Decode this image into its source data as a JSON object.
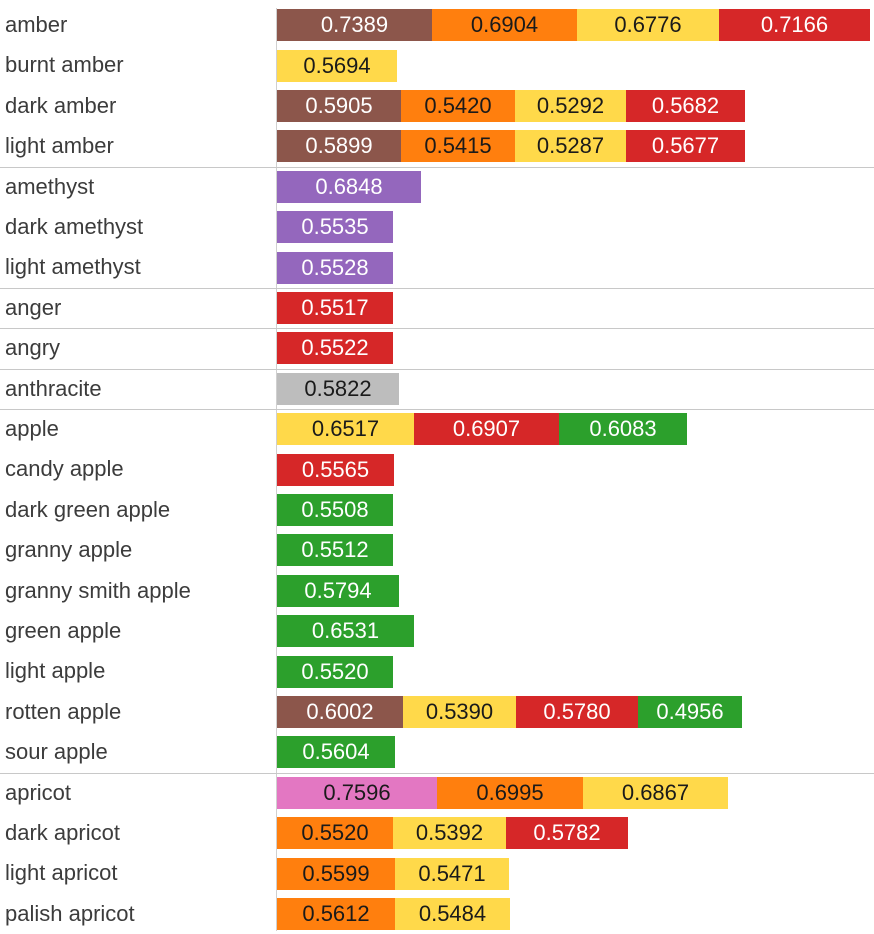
{
  "chart_data": {
    "type": "bar",
    "stacked": true,
    "orientation": "horizontal",
    "grid": false,
    "colors": {
      "brown": "#8c564b",
      "orange": "#ff7f0e",
      "yellow": "#ffd94a",
      "red": "#d62728",
      "purple": "#9467bd",
      "gray": "#bdbdbd",
      "green": "#2ca02c",
      "pink": "#e377c2"
    },
    "groups": [
      {
        "rows": [
          {
            "label": "amber",
            "segments": [
              {
                "value": 0.7389,
                "text": "0.7389",
                "color": "brown"
              },
              {
                "value": 0.6904,
                "text": "0.6904",
                "color": "orange"
              },
              {
                "value": 0.6776,
                "text": "0.6776",
                "color": "yellow"
              },
              {
                "value": 0.7166,
                "text": "0.7166",
                "color": "red"
              }
            ]
          },
          {
            "label": "burnt amber",
            "segments": [
              {
                "value": 0.5694,
                "text": "0.5694",
                "color": "yellow"
              }
            ]
          },
          {
            "label": "dark amber",
            "segments": [
              {
                "value": 0.5905,
                "text": "0.5905",
                "color": "brown"
              },
              {
                "value": 0.542,
                "text": "0.5420",
                "color": "orange"
              },
              {
                "value": 0.5292,
                "text": "0.5292",
                "color": "yellow"
              },
              {
                "value": 0.5682,
                "text": "0.5682",
                "color": "red"
              }
            ]
          },
          {
            "label": "light amber",
            "segments": [
              {
                "value": 0.5899,
                "text": "0.5899",
                "color": "brown"
              },
              {
                "value": 0.5415,
                "text": "0.5415",
                "color": "orange"
              },
              {
                "value": 0.5287,
                "text": "0.5287",
                "color": "yellow"
              },
              {
                "value": 0.5677,
                "text": "0.5677",
                "color": "red"
              }
            ]
          }
        ]
      },
      {
        "rows": [
          {
            "label": "amethyst",
            "segments": [
              {
                "value": 0.6848,
                "text": "0.6848",
                "color": "purple"
              }
            ]
          },
          {
            "label": "dark amethyst",
            "segments": [
              {
                "value": 0.5535,
                "text": "0.5535",
                "color": "purple"
              }
            ]
          },
          {
            "label": "light amethyst",
            "segments": [
              {
                "value": 0.5528,
                "text": "0.5528",
                "color": "purple"
              }
            ]
          }
        ]
      },
      {
        "rows": [
          {
            "label": "anger",
            "segments": [
              {
                "value": 0.5517,
                "text": "0.5517",
                "color": "red"
              }
            ]
          }
        ]
      },
      {
        "rows": [
          {
            "label": "angry",
            "segments": [
              {
                "value": 0.5522,
                "text": "0.5522",
                "color": "red"
              }
            ]
          }
        ]
      },
      {
        "rows": [
          {
            "label": "anthracite",
            "segments": [
              {
                "value": 0.5822,
                "text": "0.5822",
                "color": "gray"
              }
            ]
          }
        ]
      },
      {
        "rows": [
          {
            "label": "apple",
            "segments": [
              {
                "value": 0.6517,
                "text": "0.6517",
                "color": "yellow"
              },
              {
                "value": 0.6907,
                "text": "0.6907",
                "color": "red"
              },
              {
                "value": 0.6083,
                "text": "0.6083",
                "color": "green"
              }
            ]
          },
          {
            "label": "candy apple",
            "segments": [
              {
                "value": 0.5565,
                "text": "0.5565",
                "color": "red"
              }
            ]
          },
          {
            "label": "dark green apple",
            "segments": [
              {
                "value": 0.5508,
                "text": "0.5508",
                "color": "green"
              }
            ]
          },
          {
            "label": "granny apple",
            "segments": [
              {
                "value": 0.5512,
                "text": "0.5512",
                "color": "green"
              }
            ]
          },
          {
            "label": "granny smith apple",
            "segments": [
              {
                "value": 0.5794,
                "text": "0.5794",
                "color": "green"
              }
            ]
          },
          {
            "label": "green apple",
            "segments": [
              {
                "value": 0.6531,
                "text": "0.6531",
                "color": "green"
              }
            ]
          },
          {
            "label": "light apple",
            "segments": [
              {
                "value": 0.552,
                "text": "0.5520",
                "color": "green"
              }
            ]
          },
          {
            "label": "rotten apple",
            "segments": [
              {
                "value": 0.6002,
                "text": "0.6002",
                "color": "brown"
              },
              {
                "value": 0.539,
                "text": "0.5390",
                "color": "yellow"
              },
              {
                "value": 0.578,
                "text": "0.5780",
                "color": "red"
              },
              {
                "value": 0.4956,
                "text": "0.4956",
                "color": "green"
              }
            ]
          },
          {
            "label": "sour apple",
            "segments": [
              {
                "value": 0.5604,
                "text": "0.5604",
                "color": "green"
              }
            ]
          }
        ]
      },
      {
        "rows": [
          {
            "label": "apricot",
            "segments": [
              {
                "value": 0.7596,
                "text": "0.7596",
                "color": "pink"
              },
              {
                "value": 0.6995,
                "text": "0.6995",
                "color": "orange"
              },
              {
                "value": 0.6867,
                "text": "0.6867",
                "color": "yellow"
              }
            ]
          },
          {
            "label": "dark apricot",
            "segments": [
              {
                "value": 0.552,
                "text": "0.5520",
                "color": "orange"
              },
              {
                "value": 0.5392,
                "text": "0.5392",
                "color": "yellow"
              },
              {
                "value": 0.5782,
                "text": "0.5782",
                "color": "red"
              }
            ]
          },
          {
            "label": "light apricot",
            "segments": [
              {
                "value": 0.5599,
                "text": "0.5599",
                "color": "orange"
              },
              {
                "value": 0.5471,
                "text": "0.5471",
                "color": "yellow"
              }
            ]
          },
          {
            "label": "palish apricot",
            "segments": [
              {
                "value": 0.5612,
                "text": "0.5612",
                "color": "orange"
              },
              {
                "value": 0.5484,
                "text": "0.5484",
                "color": "yellow"
              }
            ]
          }
        ]
      }
    ]
  }
}
